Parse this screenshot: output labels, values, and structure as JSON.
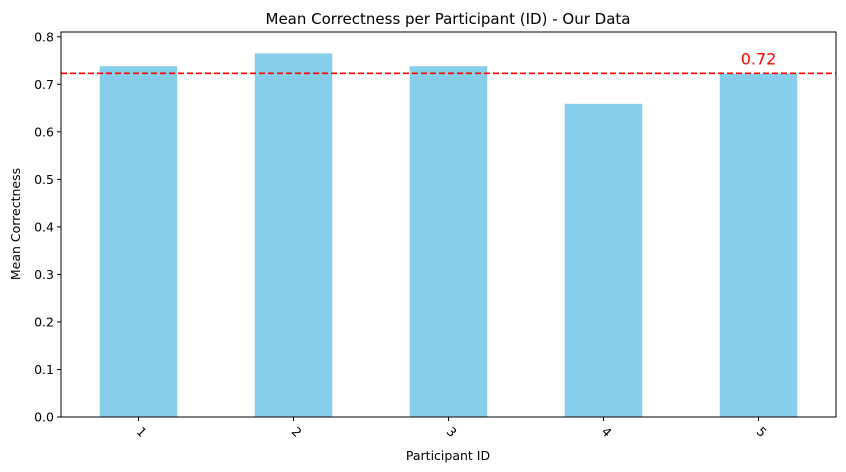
{
  "chart_data": {
    "type": "bar",
    "title": "Mean Correctness per Participant (ID) - Our Data",
    "xlabel": "Participant ID",
    "ylabel": "Mean Correctness",
    "categories": [
      "1",
      "2",
      "3",
      "4",
      "5"
    ],
    "values": [
      0.738,
      0.765,
      0.738,
      0.659,
      0.722
    ],
    "ylim": [
      0,
      0.81
    ],
    "yticks": [
      "0.0",
      "0.1",
      "0.2",
      "0.3",
      "0.4",
      "0.5",
      "0.6",
      "0.7",
      "0.8"
    ],
    "xtick_rotation": 45,
    "grid": false,
    "bar_color": "#87ceeb",
    "reference_line": {
      "value": 0.723,
      "label": "0.72",
      "color": "#ff0000",
      "style": "dashed"
    }
  }
}
